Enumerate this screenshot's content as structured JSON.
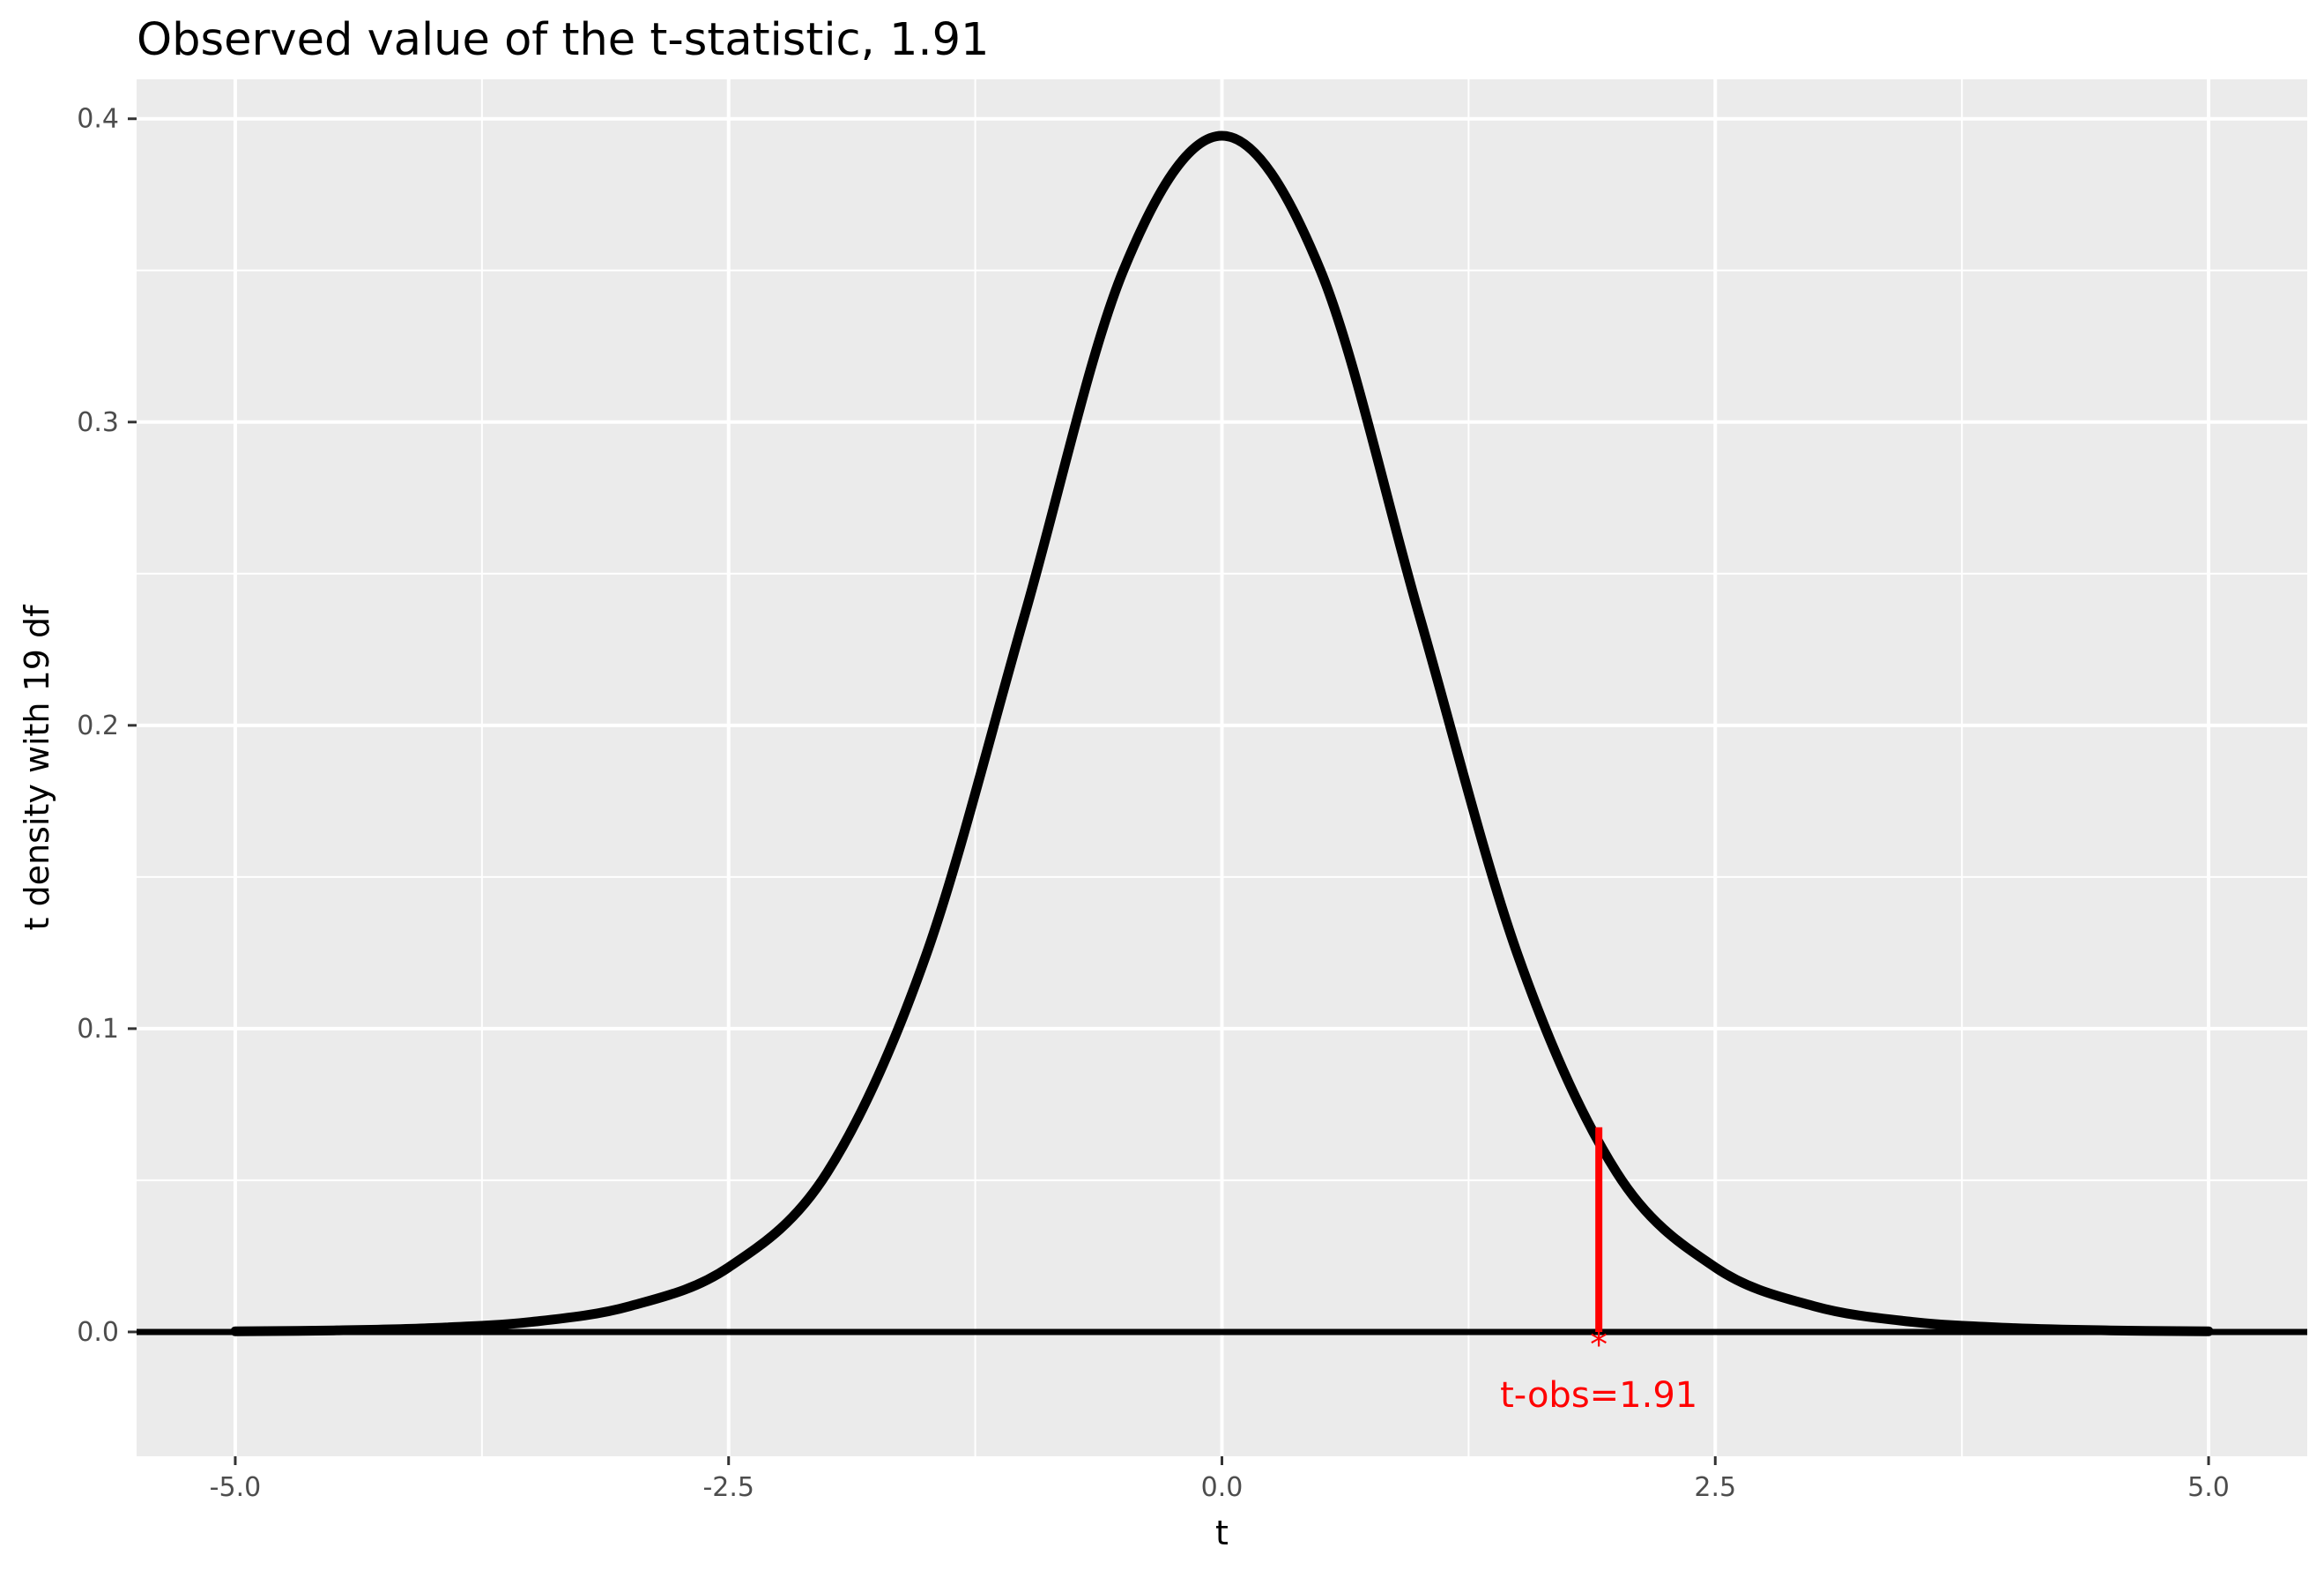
{
  "chart_data": {
    "type": "line",
    "title": "Observed value of the t-statistic, 1.91",
    "xlabel": "t",
    "ylabel": "t density with 19 df",
    "xlim": [
      -5.5,
      5.5
    ],
    "ylim": [
      -0.041,
      0.413
    ],
    "x_ticks": [
      -5.0,
      -2.5,
      0.0,
      2.5,
      5.0
    ],
    "x_tick_labels": [
      "-5.0",
      "-2.5",
      "0.0",
      "2.5",
      "5.0"
    ],
    "y_ticks": [
      0.0,
      0.1,
      0.2,
      0.3,
      0.4
    ],
    "y_tick_labels": [
      "0.0",
      "0.1",
      "0.2",
      "0.3",
      "0.4"
    ],
    "grid": true,
    "series": [
      {
        "color": "#000000",
        "x": [
          -5.0,
          -4.5,
          -4.0,
          -3.5,
          -3.0,
          -2.5,
          -2.0,
          -1.5,
          -1.0,
          -0.5,
          0.0,
          0.5,
          1.0,
          1.5,
          2.0,
          2.5,
          3.0,
          3.5,
          4.0,
          4.5,
          5.0
        ],
        "y": [
          0.0002,
          0.0005,
          0.0013,
          0.0033,
          0.0085,
          0.0213,
          0.0526,
          0.1241,
          0.2363,
          0.3499,
          0.3944,
          0.3499,
          0.2363,
          0.1241,
          0.0526,
          0.0213,
          0.0085,
          0.0033,
          0.0013,
          0.0005,
          0.0002
        ]
      }
    ],
    "baseline": {
      "y": 0.0,
      "color": "#000000"
    },
    "observed": {
      "t": 1.91,
      "density": 0.0675,
      "color": "#ff0000",
      "marker": "*",
      "label": "t-obs=1.91"
    }
  }
}
